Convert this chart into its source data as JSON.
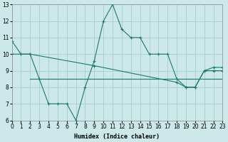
{
  "xlabel": "Humidex (Indice chaleur)",
  "background_color": "#cce8e8",
  "grid_color": "#aacccc",
  "line_color": "#1a7a6a",
  "x_min": 0,
  "x_max": 23,
  "y_min": 6,
  "y_max": 13,
  "line1_x": [
    0,
    1,
    2,
    3,
    4,
    5,
    6,
    7,
    8,
    9,
    10,
    11,
    12,
    13,
    14,
    15,
    16,
    17,
    18,
    19,
    20,
    21,
    22,
    23
  ],
  "line1_y": [
    10.8,
    10.0,
    10.0,
    8.5,
    7.0,
    7.0,
    7.0,
    6.0,
    8.0,
    9.6,
    12.0,
    13.0,
    11.5,
    11.0,
    11.0,
    10.0,
    10.0,
    10.0,
    8.5,
    8.0,
    8.0,
    9.0,
    9.0,
    9.0
  ],
  "line2_x": [
    2,
    3,
    4,
    5,
    6,
    7,
    8,
    9,
    10,
    11,
    12,
    13,
    14,
    15,
    16,
    17,
    18,
    19,
    20,
    21,
    22,
    23
  ],
  "line2_y": [
    8.5,
    8.5,
    8.5,
    8.5,
    8.5,
    8.5,
    8.5,
    8.5,
    8.5,
    8.5,
    8.5,
    8.5,
    8.5,
    8.5,
    8.5,
    8.5,
    8.5,
    8.5,
    8.5,
    8.5,
    8.5,
    8.5
  ],
  "line3_x": [
    0,
    2,
    9,
    18,
    19,
    20,
    21,
    22,
    23
  ],
  "line3_y": [
    10.0,
    10.0,
    9.3,
    8.3,
    8.0,
    8.0,
    9.0,
    9.2,
    9.2
  ],
  "yticks": [
    6,
    7,
    8,
    9,
    10,
    11,
    12,
    13
  ],
  "xticks": [
    0,
    1,
    2,
    3,
    4,
    5,
    6,
    7,
    8,
    9,
    10,
    11,
    12,
    13,
    14,
    15,
    16,
    17,
    18,
    19,
    20,
    21,
    22,
    23
  ]
}
